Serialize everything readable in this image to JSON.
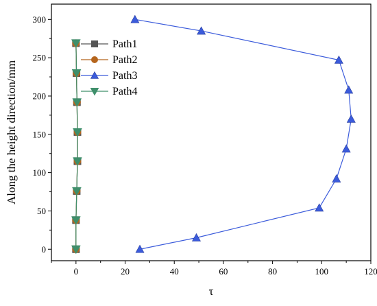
{
  "chart_data": {
    "type": "line",
    "xlabel": "τ",
    "ylabel": "Along the height direction/mm",
    "xlim": [
      -10,
      120
    ],
    "ylim": [
      -15,
      320
    ],
    "xticks": [
      0,
      20,
      40,
      60,
      80,
      100,
      120
    ],
    "yticks": [
      0,
      50,
      100,
      150,
      200,
      250,
      300
    ],
    "grid": false,
    "legend_position": "top-left",
    "series": [
      {
        "name": "Path1",
        "marker": "square",
        "color": "#555555",
        "points": [
          [
            0,
            0
          ],
          [
            0,
            38
          ],
          [
            0.3,
            76
          ],
          [
            0.6,
            115
          ],
          [
            0.6,
            153
          ],
          [
            0.4,
            192
          ],
          [
            0.2,
            230
          ],
          [
            0,
            269
          ]
        ]
      },
      {
        "name": "Path2",
        "marker": "circle",
        "color": "#b5651d",
        "points": [
          [
            0,
            0
          ],
          [
            0,
            38
          ],
          [
            0.3,
            76
          ],
          [
            0.6,
            115
          ],
          [
            0.6,
            153
          ],
          [
            0.4,
            192
          ],
          [
            0.2,
            230
          ],
          [
            0,
            269
          ]
        ]
      },
      {
        "name": "Path3",
        "marker": "triangle-up",
        "color": "#3b5bdb",
        "points": [
          [
            26,
            0
          ],
          [
            49,
            15
          ],
          [
            99,
            54
          ],
          [
            106,
            92
          ],
          [
            110,
            131
          ],
          [
            112,
            170
          ],
          [
            111,
            208
          ],
          [
            107,
            247
          ],
          [
            51,
            285
          ],
          [
            24,
            300
          ]
        ]
      },
      {
        "name": "Path4",
        "marker": "triangle-down",
        "color": "#3f8f6b",
        "points": [
          [
            0,
            0
          ],
          [
            0,
            38
          ],
          [
            0.3,
            76
          ],
          [
            0.6,
            115
          ],
          [
            0.6,
            153
          ],
          [
            0.4,
            192
          ],
          [
            0.2,
            230
          ],
          [
            0,
            269
          ]
        ]
      }
    ]
  }
}
